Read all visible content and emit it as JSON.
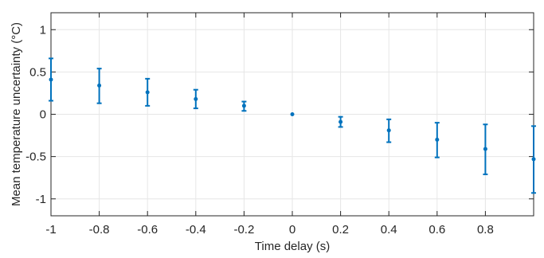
{
  "chart_data": {
    "type": "scatter",
    "title": "",
    "xlabel": "Time delay (s)",
    "ylabel": "Mean temperature uncertainty (°C)",
    "xlim": [
      -1,
      1
    ],
    "ylim": [
      -1.2,
      1.2
    ],
    "grid": true,
    "x_ticks": [
      -1,
      -0.8,
      -0.6,
      -0.4,
      -0.2,
      0,
      0.2,
      0.4,
      0.6,
      0.8
    ],
    "x_tick_labels": [
      "-1",
      "-0.8",
      "-0.6",
      "-0.4",
      "-0.2",
      "0",
      "0.2",
      "0.4",
      "0.6",
      "0.8"
    ],
    "y_ticks": [
      1,
      0.5,
      0,
      -0.5,
      -1
    ],
    "y_tick_labels": [
      "1",
      "0.5",
      "0",
      "-0.5",
      "-1"
    ],
    "color": "#0072BD",
    "series": [
      {
        "x": [
          -1.0,
          -0.8,
          -0.6,
          -0.4,
          -0.2,
          0.0,
          0.2,
          0.4,
          0.6,
          0.8,
          1.0
        ],
        "y": [
          0.41,
          0.34,
          0.26,
          0.18,
          0.1,
          0.0,
          -0.09,
          -0.19,
          -0.3,
          -0.41,
          -0.53
        ],
        "y_low": [
          0.16,
          0.13,
          0.1,
          0.07,
          0.04,
          0.0,
          -0.15,
          -0.33,
          -0.51,
          -0.71,
          -0.93
        ],
        "y_high": [
          0.66,
          0.54,
          0.42,
          0.29,
          0.15,
          0.0,
          -0.03,
          -0.06,
          -0.1,
          -0.12,
          -0.14
        ]
      }
    ]
  }
}
